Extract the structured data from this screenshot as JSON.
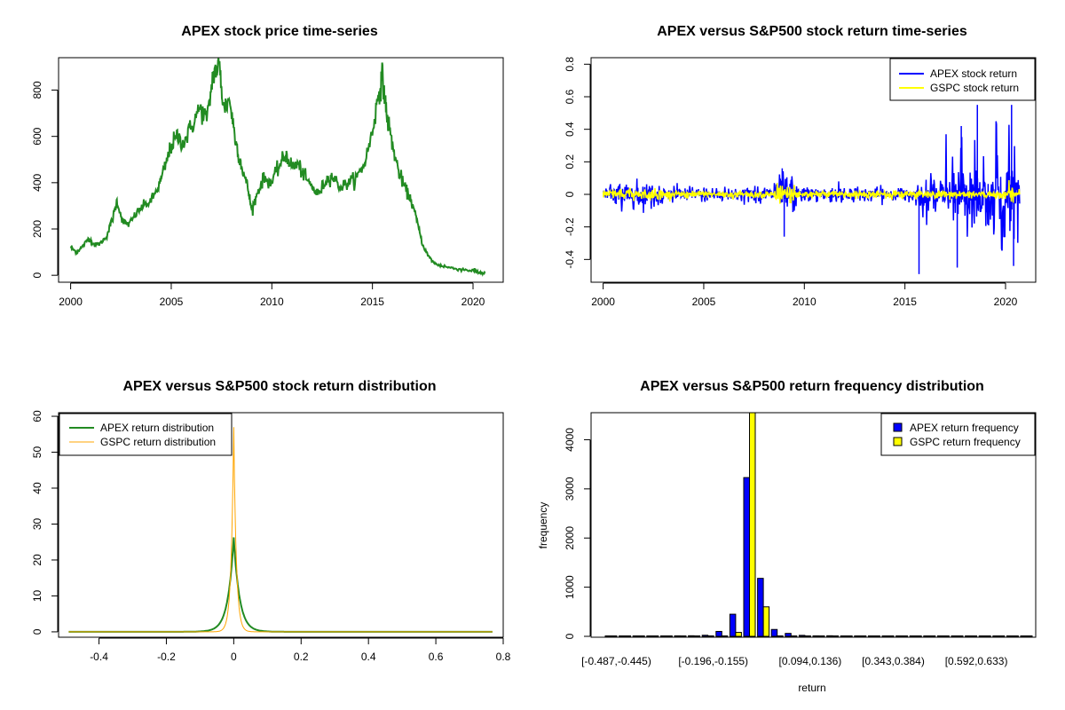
{
  "chart_data": [
    {
      "type": "line",
      "title": "APEX stock price time-series",
      "xlabel": "",
      "ylabel": "",
      "xlim": [
        1999.4,
        2021.5
      ],
      "ylim": [
        -30,
        940
      ],
      "xticks": [
        2000,
        2005,
        2010,
        2015,
        2020
      ],
      "yticks": [
        0,
        200,
        400,
        600,
        800
      ],
      "series": [
        {
          "name": "APEX",
          "color": "#228B22",
          "x": [
            2000.0,
            2000.3,
            2000.6,
            2000.9,
            2001.2,
            2001.5,
            2001.8,
            2002.1,
            2002.3,
            2002.6,
            2002.9,
            2003.2,
            2003.6,
            2004.0,
            2004.4,
            2004.7,
            2005.0,
            2005.3,
            2005.6,
            2006.0,
            2006.4,
            2006.8,
            2007.1,
            2007.4,
            2007.6,
            2007.9,
            2008.2,
            2008.5,
            2008.8,
            2009.0,
            2009.3,
            2009.6,
            2010.0,
            2010.4,
            2010.7,
            2011.0,
            2011.3,
            2011.6,
            2012.0,
            2012.3,
            2012.7,
            2013.0,
            2013.4,
            2013.8,
            2014.2,
            2014.6,
            2015.0,
            2015.3,
            2015.5,
            2015.7,
            2016.0,
            2016.3,
            2016.6,
            2016.9,
            2017.2,
            2017.5,
            2017.8,
            2018.1,
            2018.5,
            2019.0,
            2019.5,
            2020.0,
            2020.3,
            2020.6
          ],
          "values": [
            120,
            100,
            125,
            160,
            130,
            140,
            170,
            250,
            320,
            230,
            220,
            260,
            300,
            320,
            390,
            470,
            560,
            600,
            570,
            640,
            720,
            680,
            880,
            900,
            720,
            760,
            580,
            470,
            380,
            280,
            360,
            420,
            400,
            480,
            520,
            470,
            480,
            430,
            380,
            350,
            410,
            430,
            380,
            400,
            420,
            480,
            620,
            780,
            860,
            700,
            560,
            450,
            380,
            330,
            240,
            130,
            80,
            50,
            40,
            30,
            25,
            20,
            12,
            10
          ]
        }
      ]
    },
    {
      "type": "line",
      "title": "APEX versus S&P500 stock return time-series",
      "xlabel": "",
      "ylabel": "",
      "xlim": [
        1999.4,
        2021.5
      ],
      "ylim": [
        -0.54,
        0.84
      ],
      "xticks": [
        2000,
        2005,
        2010,
        2015,
        2020
      ],
      "yticks": [
        -0.4,
        -0.2,
        0.0,
        0.2,
        0.4,
        0.6,
        0.8
      ],
      "legend": [
        "APEX stock return",
        "GSPC stock return"
      ],
      "series": [
        {
          "name": "APEX stock return",
          "color": "#0000FF"
        },
        {
          "name": "GSPC stock return",
          "color": "#FFFF00"
        }
      ]
    },
    {
      "type": "line",
      "title": "APEX versus S&P500 stock return distribution",
      "xlabel": "",
      "ylabel": "",
      "xlim": [
        -0.52,
        0.8
      ],
      "ylim": [
        -1.5,
        61
      ],
      "xticks": [
        -0.4,
        -0.2,
        0.0,
        0.2,
        0.4,
        0.6,
        0.8
      ],
      "yticks": [
        0,
        10,
        20,
        30,
        40,
        50,
        60
      ],
      "legend": [
        "APEX return distribution",
        "GSPC return distribution"
      ],
      "series": [
        {
          "name": "APEX return distribution",
          "color": "#228B22",
          "peak": 26,
          "width": 0.017
        },
        {
          "name": "GSPC return distribution",
          "color": "#FFA500",
          "peak": 57,
          "width": 0.0075
        }
      ]
    },
    {
      "type": "bar",
      "title": "APEX versus S&P500 return frequency distribution",
      "xlabel": "return",
      "ylabel": "frequency",
      "ylim": [
        0,
        4550
      ],
      "yticks": [
        0,
        1000,
        2000,
        3000,
        4000
      ],
      "tick_labels": [
        "[-0.487,-0.445)",
        "[-0.196,-0.155)",
        "[0.094,0.136)",
        "[0.343,0.384)",
        "[0.592,0.633)"
      ],
      "tick_label_positions": [
        0,
        7,
        14,
        20,
        26
      ],
      "legend": [
        "APEX return frequency",
        "GSPC return frequency"
      ],
      "series": [
        {
          "name": "APEX return frequency",
          "color": "#0000FF",
          "values": [
            2,
            2,
            3,
            4,
            8,
            10,
            12,
            22,
            100,
            450,
            3230,
            1180,
            140,
            60,
            20,
            10,
            12,
            6,
            4,
            3,
            2,
            2,
            2,
            2,
            2,
            2,
            2,
            2,
            2,
            2,
            2
          ]
        },
        {
          "name": "GSPC return frequency",
          "color": "#FFFF00",
          "values": [
            0,
            0,
            0,
            0,
            0,
            0,
            0,
            0,
            3,
            80,
            4600,
            600,
            0,
            0,
            0,
            0,
            0,
            0,
            0,
            0,
            0,
            0,
            0,
            0,
            0,
            0,
            0,
            0,
            0,
            0,
            0
          ]
        }
      ]
    }
  ]
}
